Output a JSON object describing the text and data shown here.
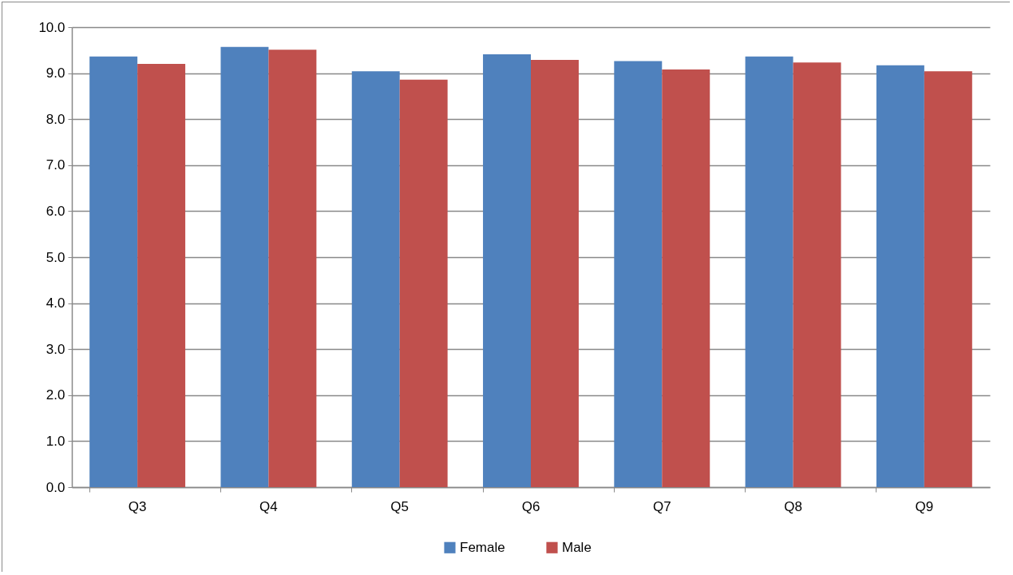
{
  "chart_data": {
    "type": "bar",
    "categories": [
      "Q3",
      "Q4",
      "Q5",
      "Q6",
      "Q7",
      "Q8",
      "Q9"
    ],
    "series": [
      {
        "name": "Female",
        "color": "#4f81bd",
        "values": [
          9.36,
          9.57,
          9.04,
          9.41,
          9.26,
          9.36,
          9.17
        ]
      },
      {
        "name": "Male",
        "color": "#c0504d",
        "values": [
          9.2,
          9.51,
          8.86,
          9.29,
          9.08,
          9.23,
          9.04
        ]
      }
    ],
    "ylim": [
      0,
      10
    ],
    "yticks": [
      {
        "value": 0,
        "label": "0.0"
      },
      {
        "value": 1,
        "label": "1.0"
      },
      {
        "value": 2,
        "label": "2.0"
      },
      {
        "value": 3,
        "label": "3.0"
      },
      {
        "value": 4,
        "label": "4.0"
      },
      {
        "value": 5,
        "label": "5.0"
      },
      {
        "value": 6,
        "label": "6.0"
      },
      {
        "value": 7,
        "label": "7.0"
      },
      {
        "value": 8,
        "label": "8.0"
      },
      {
        "value": 9,
        "label": "9.0"
      },
      {
        "value": 10,
        "label": "10.0"
      }
    ],
    "grid": "y",
    "legend": "bottom"
  }
}
